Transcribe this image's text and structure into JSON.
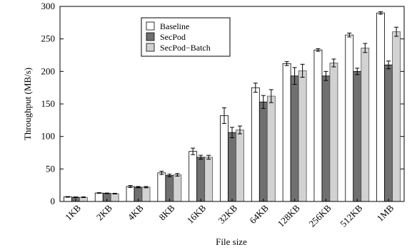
{
  "chart_data": {
    "type": "bar",
    "title": "",
    "xlabel": "File size",
    "ylabel": "Throughput (MB/s)",
    "ylim": [
      0,
      300
    ],
    "yticks": [
      0,
      50,
      100,
      150,
      200,
      250,
      300
    ],
    "grid": false,
    "legend_position": "top-left",
    "error_bars": true,
    "categories": [
      "1KB",
      "2KB",
      "4KB",
      "8KB",
      "16KB",
      "32KB",
      "64KB",
      "128KB",
      "256KB",
      "512KB",
      "1MB"
    ],
    "series": [
      {
        "name": "Baseline",
        "color": "#ffffff",
        "values": [
          7,
          13,
          23,
          44,
          77,
          132,
          175,
          212,
          233,
          256,
          290
        ],
        "errors": [
          0.5,
          0.5,
          1.5,
          2.5,
          5,
          12,
          7,
          3,
          2,
          3,
          2
        ]
      },
      {
        "name": "SecPod",
        "color": "#707070",
        "values": [
          6.5,
          12.5,
          22,
          40,
          68,
          106,
          153,
          193,
          193,
          200,
          210
        ],
        "errors": [
          0.5,
          0.5,
          1,
          2,
          3,
          8,
          10,
          13,
          7,
          5,
          6
        ]
      },
      {
        "name": "SecPod−Batch",
        "color": "#d2d2d2",
        "values": [
          6.5,
          12,
          22,
          41,
          68,
          110,
          162,
          201,
          213,
          236,
          261
        ],
        "errors": [
          0.5,
          0.5,
          1,
          2,
          3,
          6,
          10,
          10,
          6,
          7,
          7
        ]
      }
    ]
  }
}
